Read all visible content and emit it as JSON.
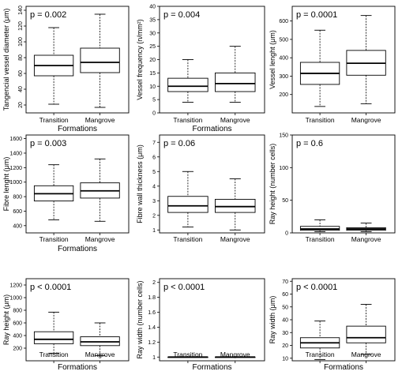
{
  "chart_data": [
    {
      "type": "box",
      "pvalue": "p = 0.002",
      "ylabel": "Tangencial vessel diameter (μm)",
      "xlabel": "Formations",
      "categories": [
        "Transition",
        "Mangrove"
      ],
      "ylim": [
        10,
        145
      ],
      "yticks": [
        20,
        40,
        60,
        80,
        100,
        120,
        140
      ],
      "ytick_rotated": true,
      "boxes": [
        {
          "min": 21,
          "q1": 57,
          "median": 70,
          "q3": 83,
          "max": 118
        },
        {
          "min": 17,
          "q1": 61,
          "median": 74,
          "q3": 92,
          "max": 135
        }
      ]
    },
    {
      "type": "box",
      "pvalue": "p = 0.004",
      "ylabel": "Vessel frequency (n/mm²)",
      "xlabel": "Formations",
      "categories": [
        "Transition",
        "Mangrove"
      ],
      "ylim": [
        0,
        40
      ],
      "yticks": [
        0,
        5,
        10,
        15,
        20,
        25,
        30,
        35,
        40
      ],
      "ytick_rotated": false,
      "boxes": [
        {
          "min": 4,
          "q1": 8,
          "median": 10,
          "q3": 13,
          "max": 20
        },
        {
          "min": 4,
          "q1": 8,
          "median": 11,
          "q3": 15,
          "max": 25
        }
      ]
    },
    {
      "type": "box",
      "pvalue": "p = 0.0001",
      "ylabel": "Vessel lenght (μm)",
      "xlabel": "",
      "categories": [
        "Transition",
        "Mangrove"
      ],
      "ylim": [
        100,
        680
      ],
      "yticks": [
        200,
        300,
        400,
        500,
        600
      ],
      "ytick_rotated": false,
      "boxes": [
        {
          "min": 135,
          "q1": 255,
          "median": 315,
          "q3": 375,
          "max": 550
        },
        {
          "min": 150,
          "q1": 305,
          "median": 370,
          "q3": 440,
          "max": 630
        }
      ]
    },
    {
      "type": "box",
      "pvalue": "p = 0.003",
      "ylabel": "Fibre lenght (μm)",
      "xlabel": "Formations",
      "categories": [
        "Transition",
        "Mangrove"
      ],
      "ylim": [
        300,
        1650
      ],
      "yticks": [
        400,
        600,
        800,
        1000,
        1200,
        1400,
        1600
      ],
      "ytick_rotated": false,
      "boxes": [
        {
          "min": 480,
          "q1": 740,
          "median": 840,
          "q3": 950,
          "max": 1240
        },
        {
          "min": 460,
          "q1": 780,
          "median": 880,
          "q3": 990,
          "max": 1320
        }
      ]
    },
    {
      "type": "box",
      "pvalue": "p = 0.06",
      "ylabel": "Fibre wall thickness (μm)",
      "xlabel": "",
      "categories": [
        "Transition",
        "Mangrove"
      ],
      "ylim": [
        0.8,
        7.5
      ],
      "yticks": [
        1,
        2,
        3,
        4,
        5,
        6,
        7
      ],
      "ytick_rotated": false,
      "boxes": [
        {
          "min": 1.2,
          "q1": 2.2,
          "median": 2.65,
          "q3": 3.3,
          "max": 5.0
        },
        {
          "min": 1.0,
          "q1": 2.2,
          "median": 2.6,
          "q3": 3.1,
          "max": 4.5
        }
      ]
    },
    {
      "type": "box",
      "pvalue": "p = 0.6",
      "ylabel": "Ray height (number cells)",
      "xlabel": "",
      "categories": [
        "Transition",
        "Mangrove"
      ],
      "ylim": [
        0,
        150
      ],
      "yticks": [
        0,
        50,
        100,
        150
      ],
      "ytick_rotated": false,
      "boxes": [
        {
          "min": 2,
          "q1": 4,
          "median": 6,
          "q3": 10,
          "max": 20
        },
        {
          "min": 2,
          "q1": 4,
          "median": 6,
          "q3": 8,
          "max": 15
        }
      ]
    },
    {
      "type": "box",
      "pvalue": "p < 0.0001",
      "ylabel": "Ray height (μm)",
      "xlabel": "Formations",
      "categories": [
        "Transition",
        "Mangrove"
      ],
      "ylim": [
        0,
        1300
      ],
      "yticks": [
        200,
        400,
        600,
        800,
        1000,
        1200
      ],
      "ytick_rotated": false,
      "boxes": [
        {
          "min": 120,
          "q1": 270,
          "median": 340,
          "q3": 460,
          "max": 770
        },
        {
          "min": 80,
          "q1": 240,
          "median": 300,
          "q3": 380,
          "max": 600
        }
      ]
    },
    {
      "type": "box",
      "pvalue": "p < 0.0001",
      "ylabel": "Ray width (number cells)",
      "xlabel": "Formations",
      "categories": [
        "Transition",
        "Mangrove"
      ],
      "ylim": [
        0.95,
        2.05
      ],
      "yticks": [
        1.0,
        1.2,
        1.4,
        1.6,
        1.8,
        2.0
      ],
      "ytick_rotated": false,
      "boxes": [
        {
          "min": 1,
          "q1": 1,
          "median": 1,
          "q3": 1,
          "max": 1
        },
        {
          "min": 1,
          "q1": 1,
          "median": 1,
          "q3": 1,
          "max": 1
        }
      ]
    },
    {
      "type": "box",
      "pvalue": "p < 0.0001",
      "ylabel": "Ray width (μm)",
      "xlabel": "Formations",
      "categories": [
        "Transition",
        "Mangrove"
      ],
      "ylim": [
        8,
        72
      ],
      "yticks": [
        10,
        20,
        30,
        40,
        50,
        60,
        70
      ],
      "ytick_rotated": false,
      "boxes": [
        {
          "min": 9,
          "q1": 18,
          "median": 22,
          "q3": 26,
          "max": 39
        },
        {
          "min": 13,
          "q1": 22,
          "median": 26,
          "q3": 35,
          "max": 52
        }
      ]
    }
  ]
}
